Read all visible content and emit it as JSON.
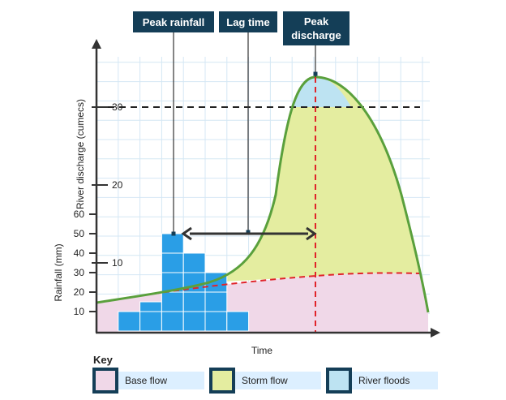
{
  "chart_data": {
    "type": "hydrograph",
    "xlabel": "Time",
    "ylabel_discharge": "River discharge (cumecs)",
    "ylabel_rainfall": "Rainfall (mm)",
    "discharge_ticks": [
      "10",
      "20",
      "30"
    ],
    "rainfall_ticks": [
      "10",
      "20",
      "30",
      "40",
      "50",
      "60"
    ],
    "flood_threshold": 30,
    "rainfall_bars": [
      {
        "t": 1,
        "value": 10
      },
      {
        "t": 2,
        "value": 15
      },
      {
        "t": 3,
        "value": 50
      },
      {
        "t": 4,
        "value": 40
      },
      {
        "t": 5,
        "value": 30
      },
      {
        "t": 6,
        "value": 10
      }
    ],
    "annotations": {
      "peak_rainfall": "Peak rainfall",
      "lag_time": "Lag time",
      "peak_discharge_line1": "Peak",
      "peak_discharge_line2": "discharge"
    },
    "key": {
      "title": "Key",
      "items": [
        {
          "label": "Base flow",
          "color": "#f0d8e8"
        },
        {
          "label": "Storm flow",
          "color": "#e4eda0"
        },
        {
          "label": "River floods",
          "color": "#bde3f2"
        }
      ]
    },
    "colors": {
      "curve": "#5aa03c",
      "base_line": "#e0242a",
      "bars": "#2a9ee6",
      "label_box": "#143e57",
      "grid": "#d4e7f4",
      "key_bg": "#dcefff"
    }
  }
}
